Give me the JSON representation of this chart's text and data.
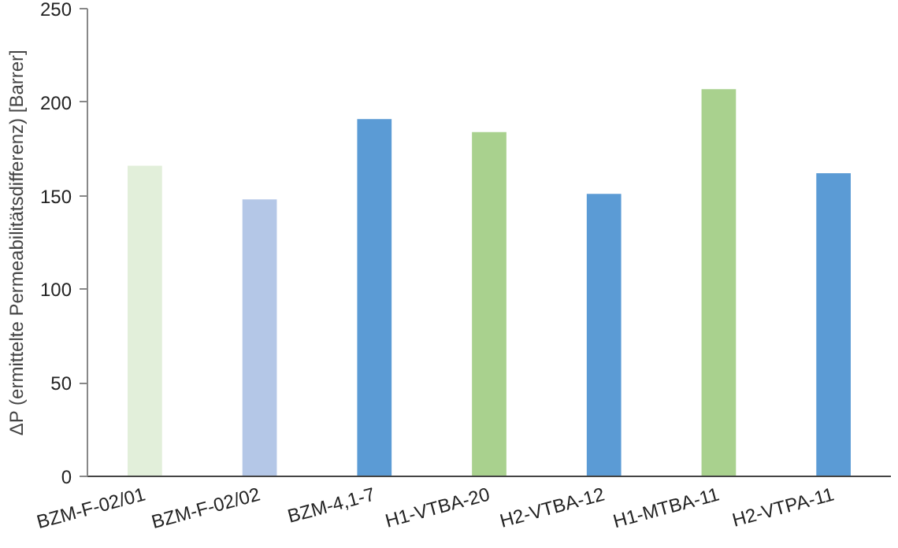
{
  "chart_data": {
    "type": "bar",
    "ylabel": "ΔP (ermittelte Permeabilitätsdifferenz) [Barrer]",
    "categories": [
      "BZM-F-02/01",
      "BZM-F-02/02",
      "BZM-4,1-7",
      "H1-VTBA-20",
      "H2-VTBA-12",
      "H1-MTBA-11",
      "H2-VTPA-11"
    ],
    "values": [
      166,
      148,
      191,
      184,
      151,
      207,
      162
    ],
    "colors": [
      "#e2efda",
      "#b4c7e7",
      "#5b9bd5",
      "#a9d18e",
      "#5b9bd5",
      "#a9d18e",
      "#5b9bd5"
    ],
    "ylim": [
      0,
      250
    ],
    "yticks": [
      0,
      50,
      100,
      150,
      200,
      250
    ],
    "grid": false
  }
}
